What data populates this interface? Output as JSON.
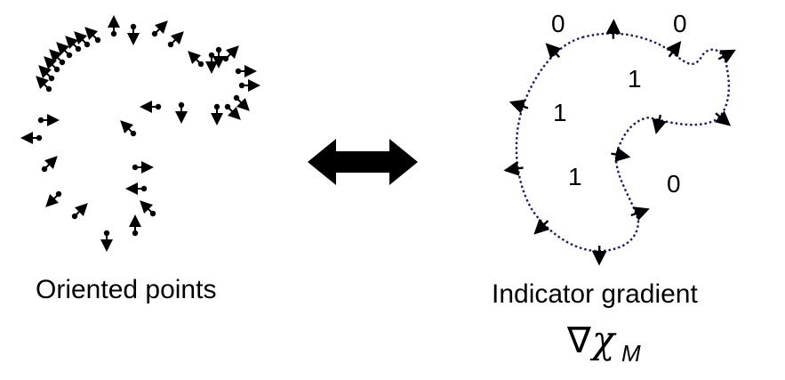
{
  "left_caption": "Oriented points",
  "right_caption": "Indicator gradient",
  "formula": {
    "nabla": "∇",
    "chi": "χ",
    "subscript": "M"
  },
  "indicator_values": [
    "0",
    "0",
    "1",
    "1",
    "1",
    "0"
  ],
  "colors": {
    "curve": "#1a1a6e",
    "ink": "#000000"
  },
  "icons": {
    "center": "double-arrow-icon"
  }
}
